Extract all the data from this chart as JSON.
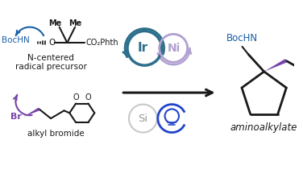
{
  "background_color": "#ffffff",
  "ir_circle_color": "#2d6e8a",
  "ni_circle_color": "#b0a0d0",
  "si_circle_color": "#c8c8c8",
  "light_circle_color": "#2244cc",
  "blue_text_color": "#1a5fa8",
  "purple_color": "#7744aa",
  "bc": "#1a1a1a",
  "gray_text": "#555555",
  "ir_label": "Ir",
  "ni_label": "Ni",
  "si_label": "Si",
  "bochm_label": "BocHN",
  "aminoalkylate_label": "aminoalkylate"
}
